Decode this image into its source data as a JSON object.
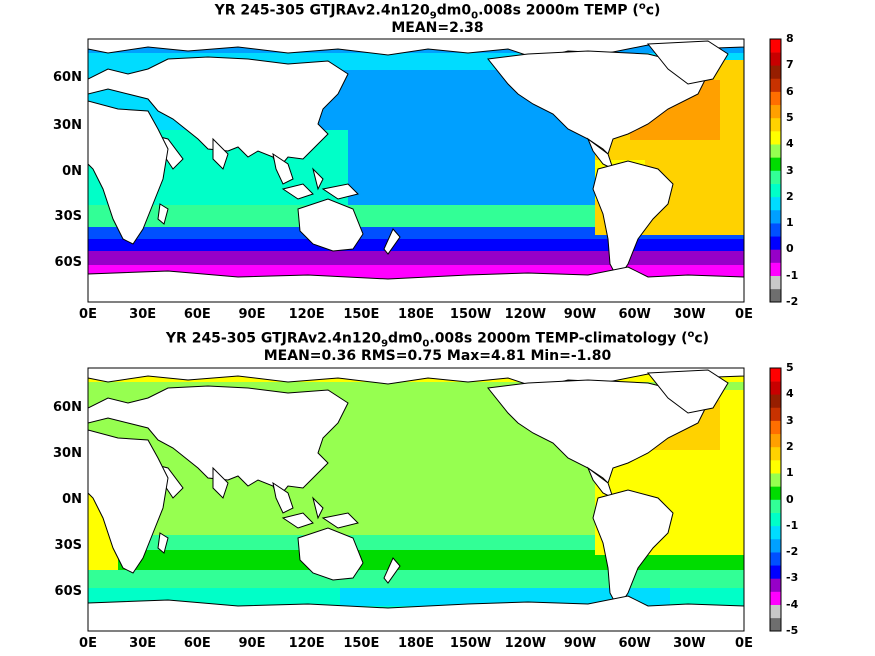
{
  "panels": [
    {
      "title_line1_pre": "YR 245-305 GTJRAv2.4n120",
      "title_sub1": "9",
      "title_mid": "dm0",
      "title_sub2": "0",
      "title_line1_post": ".008s 2000m TEMP (",
      "title_sup": "o",
      "title_end": "c)",
      "title_line2": "MEAN=2.38",
      "colorbar_labels": [
        "8",
        "7",
        "6",
        "5",
        "4",
        "3",
        "2",
        "1",
        "0",
        "-1",
        "-2"
      ]
    },
    {
      "title_line1_pre": "YR 245-305 GTJRAv2.4n120",
      "title_sub1": "9",
      "title_mid": "dm0",
      "title_sub2": "0",
      "title_line1_post": ".008s 2000m TEMP-climatology (",
      "title_sup": "o",
      "title_end": "c)",
      "title_line2": "MEAN=0.36   RMS=0.75   Max=4.81   Min=-1.80",
      "colorbar_labels": [
        "5",
        "4",
        "3",
        "2",
        "1",
        "0",
        "-1",
        "-2",
        "-3",
        "-4",
        "-5"
      ]
    }
  ],
  "lat_labels": [
    "60N",
    "30N",
    "0N",
    "30S",
    "60S"
  ],
  "lon_labels": [
    "0E",
    "30E",
    "60E",
    "90E",
    "120E",
    "150E",
    "180E",
    "150W",
    "120W",
    "90W",
    "60W",
    "30W",
    "0E"
  ],
  "colors": {
    "scale": [
      "#6e6e6e",
      "#c8c8c8",
      "#ff00ff",
      "#9600c8",
      "#0000ff",
      "#0050ff",
      "#00a0ff",
      "#00dcff",
      "#00ffc8",
      "#32ff96",
      "#00dc00",
      "#96ff50",
      "#ffff00",
      "#ffd200",
      "#ffa000",
      "#ff6e00",
      "#c83200",
      "#961e00",
      "#c80000",
      "#ff0000"
    ],
    "land": "#ffffff",
    "coast": "#000000"
  }
}
